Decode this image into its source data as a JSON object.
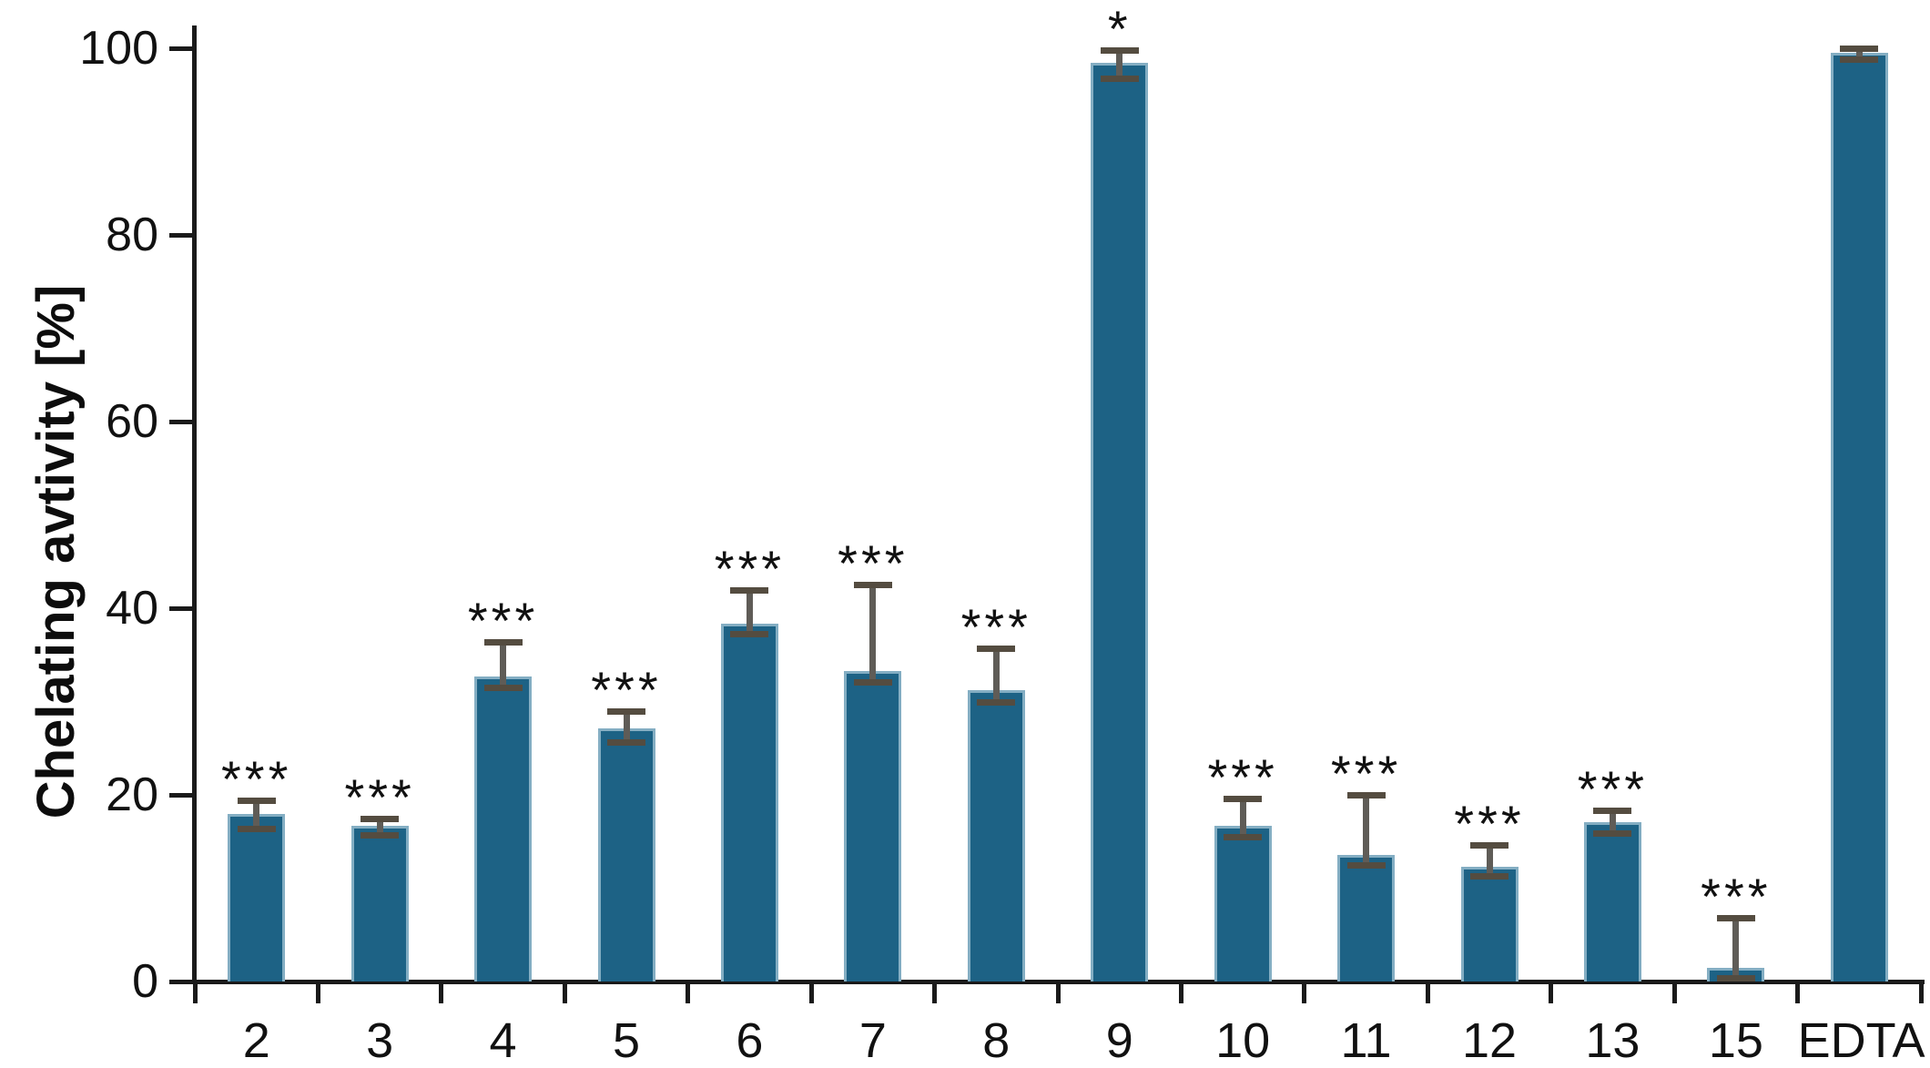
{
  "chart_data": {
    "type": "bar",
    "title": "",
    "xlabel": "",
    "ylabel": "Chelating avtivity [%]",
    "ylim": [
      0,
      100
    ],
    "yticks": [
      "0",
      "20",
      "40",
      "60",
      "80",
      "100"
    ],
    "ytick_values": [
      0,
      20,
      40,
      60,
      80,
      100
    ],
    "grid": false,
    "legend": null,
    "colors": {
      "bar_fill": "#1D6285",
      "bar_border": "#84AEC3",
      "error_stem": "#5F5C57",
      "error_cap": "#544C40",
      "axis": "#1a1a1a",
      "text": "#111111"
    },
    "categories": [
      "2",
      "3",
      "4",
      "5",
      "6",
      "7",
      "8",
      "9",
      "10",
      "11",
      "12",
      "13",
      "15",
      "EDTA"
    ],
    "series": [
      {
        "name": "Chelating activity [%]",
        "values": [
          18.0,
          16.7,
          32.7,
          27.1,
          38.3,
          33.3,
          31.2,
          98.4,
          16.7,
          13.6,
          12.3,
          17.1,
          1.5,
          99.5
        ],
        "errors_up": [
          1.4,
          0.8,
          3.7,
          1.9,
          3.7,
          9.2,
          4.5,
          1.4,
          2.9,
          6.4,
          2.3,
          1.2,
          5.3,
          0.5
        ],
        "errors_down": [
          1.4,
          0.8,
          1.0,
          1.2,
          0.8,
          1.0,
          1.1,
          1.4,
          1.0,
          0.9,
          0.8,
          1.0,
          1.2,
          0.5
        ],
        "significance": [
          "***",
          "***",
          "***",
          "***",
          "***",
          "***",
          "***",
          "*",
          "***",
          "***",
          "***",
          "***",
          "***",
          ""
        ]
      }
    ]
  }
}
